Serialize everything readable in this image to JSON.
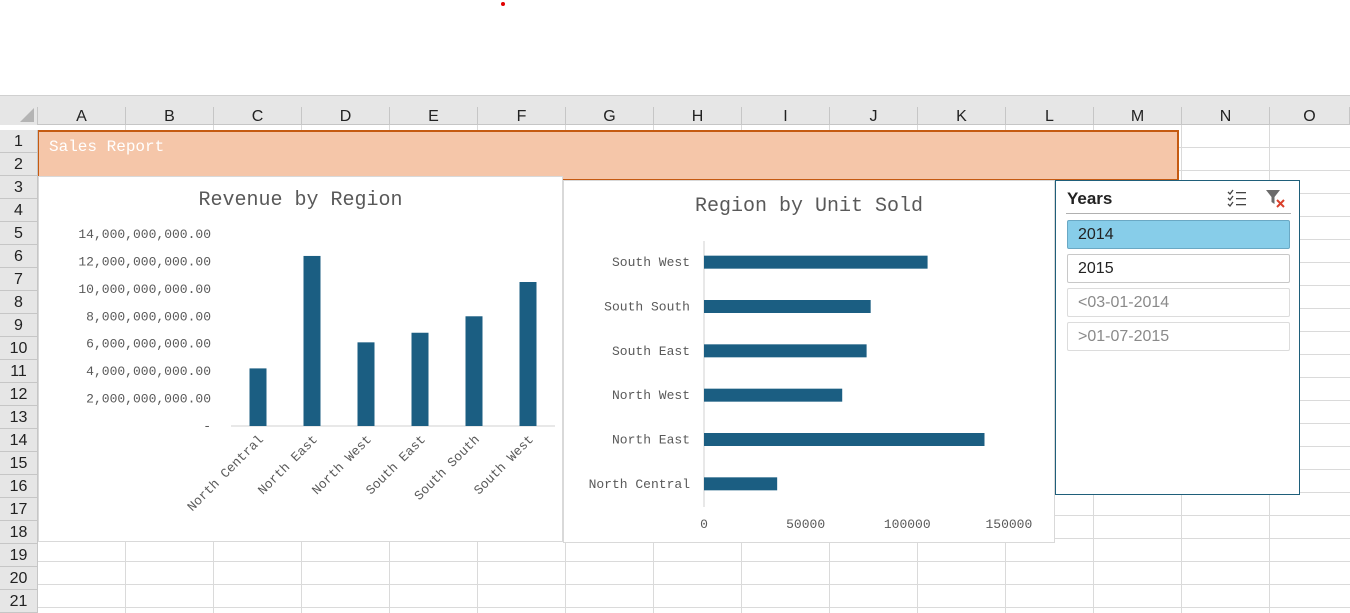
{
  "sheet": {
    "columns": [
      "A",
      "B",
      "C",
      "D",
      "E",
      "F",
      "G",
      "H",
      "I",
      "J",
      "K",
      "L",
      "M",
      "N",
      "O"
    ],
    "rows": [
      "1",
      "2",
      "3",
      "4",
      "5",
      "6",
      "7",
      "8",
      "9",
      "10",
      "11",
      "12",
      "13",
      "14",
      "15",
      "16",
      "17",
      "18",
      "19",
      "20",
      "21"
    ],
    "title_cell": "Sales Report"
  },
  "chart_data": [
    {
      "type": "bar",
      "title": "Revenue by Region",
      "categories": [
        "North Central",
        "North East",
        "North West",
        "South East",
        "South South",
        "South West"
      ],
      "values": [
        4200000000,
        12400000000,
        6100000000,
        6800000000,
        8000000000,
        10500000000
      ],
      "ylim": [
        0,
        14000000000
      ],
      "y_ticks": [
        "14,000,000,000.00",
        "12,000,000,000.00",
        "10,000,000,000.00",
        "8,000,000,000.00",
        "6,000,000,000.00",
        "4,000,000,000.00",
        "2,000,000,000.00",
        "-"
      ],
      "color": "#1b5e82"
    },
    {
      "type": "bar",
      "orientation": "horizontal",
      "title": "Region by Unit Sold",
      "categories": [
        "South West",
        "South South",
        "South East",
        "North West",
        "North East",
        "North Central"
      ],
      "values": [
        110000,
        82000,
        80000,
        68000,
        138000,
        36000
      ],
      "xlim": [
        0,
        160000
      ],
      "x_ticks": [
        "0",
        "50000",
        "100000",
        "150000"
      ],
      "color": "#1b5e82"
    }
  ],
  "slicer": {
    "title": "Years",
    "items": [
      {
        "label": "2014",
        "state": "selected"
      },
      {
        "label": "2015",
        "state": "normal"
      },
      {
        "label": "<03-01-2014",
        "state": "dim"
      },
      {
        "label": ">01-07-2015",
        "state": "dim"
      }
    ],
    "icons": [
      "multi-select-icon",
      "clear-filter-icon"
    ]
  }
}
